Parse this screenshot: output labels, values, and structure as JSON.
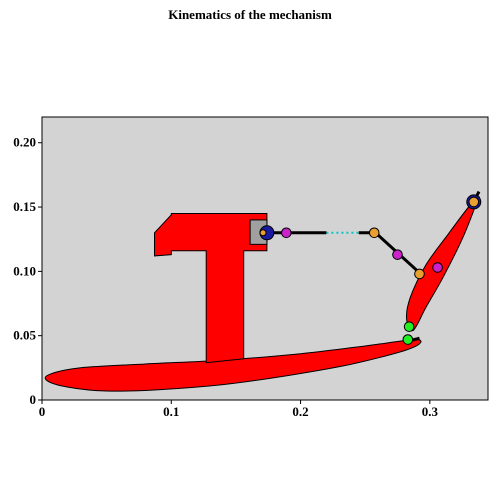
{
  "title": "Kinematics of the mechanism",
  "colors": {
    "background": "#d3d3d3",
    "body_fill": "#ff0000",
    "link": "#000000",
    "dotted_link": "#00c8c8",
    "slider_block": "#a0a0a0",
    "joint_blue": "#1a1aa0",
    "joint_orange": "#e8a030",
    "joint_magenta": "#cc22cc",
    "joint_green": "#22ee22"
  },
  "chart_data": {
    "type": "diagram",
    "xlim": [
      0,
      0.345
    ],
    "ylim": [
      0,
      0.22
    ],
    "x_ticks": [
      {
        "value": 0,
        "label": "0"
      },
      {
        "value": 0.1,
        "label": "0.1"
      },
      {
        "value": 0.2,
        "label": "0.2"
      },
      {
        "value": 0.3,
        "label": "0.3"
      }
    ],
    "y_ticks": [
      {
        "value": 0,
        "label": "0"
      },
      {
        "value": 0.05,
        "label": "0.05"
      },
      {
        "value": 0.1,
        "label": "0.10"
      },
      {
        "value": 0.15,
        "label": "0.15"
      },
      {
        "value": 0.2,
        "label": "0.20"
      }
    ],
    "grid": false,
    "hammer_head": [
      [
        0.087,
        0.13
      ],
      [
        0.087,
        0.112
      ],
      [
        0.1,
        0.113
      ],
      [
        0.1,
        0.116
      ],
      [
        0.127,
        0.116
      ],
      [
        0.127,
        0.029
      ],
      [
        0.156,
        0.032
      ],
      [
        0.156,
        0.116
      ],
      [
        0.174,
        0.116
      ],
      [
        0.174,
        0.145
      ],
      [
        0.1,
        0.145
      ],
      [
        0.1,
        0.144
      ]
    ],
    "lower_body": [
      [
        0.006,
        0.02
      ],
      [
        0.03,
        0.025
      ],
      [
        0.08,
        0.028
      ],
      [
        0.14,
        0.031
      ],
      [
        0.2,
        0.036
      ],
      [
        0.25,
        0.042
      ],
      [
        0.29,
        0.047
      ],
      [
        0.285,
        0.04
      ],
      [
        0.24,
        0.028
      ],
      [
        0.19,
        0.019
      ],
      [
        0.14,
        0.012
      ],
      [
        0.09,
        0.008
      ],
      [
        0.05,
        0.007
      ],
      [
        0.02,
        0.01
      ],
      [
        0.004,
        0.015
      ]
    ],
    "arm": [
      [
        0.287,
        0.054
      ],
      [
        0.297,
        0.072
      ],
      [
        0.31,
        0.095
      ],
      [
        0.325,
        0.125
      ],
      [
        0.335,
        0.15
      ],
      [
        0.338,
        0.158
      ],
      [
        0.33,
        0.15
      ],
      [
        0.315,
        0.13
      ],
      [
        0.297,
        0.105
      ],
      [
        0.285,
        0.08
      ],
      [
        0.282,
        0.063
      ]
    ],
    "slider_block": {
      "x": [
        0.161,
        0.174
      ],
      "y": [
        0.121,
        0.14
      ]
    },
    "links": [
      {
        "x": [
          0.171,
          0.22
        ],
        "y": [
          0.13,
          0.13
        ],
        "style": "solid"
      },
      {
        "x": [
          0.22,
          0.245
        ],
        "y": [
          0.13,
          0.13
        ],
        "style": "dotted"
      },
      {
        "x": [
          0.245,
          0.258
        ],
        "y": [
          0.13,
          0.13
        ],
        "style": "solid"
      },
      {
        "x": [
          0.258,
          0.293
        ],
        "y": [
          0.13,
          0.098
        ],
        "style": "solid"
      },
      {
        "x": [
          0.284,
          0.292
        ],
        "y": [
          0.046,
          0.048
        ],
        "style": "solid"
      },
      {
        "x": [
          0.334,
          0.338
        ],
        "y": [
          0.154,
          0.162
        ],
        "style": "solid"
      }
    ],
    "joints": [
      {
        "x": 0.174,
        "y": 0.13,
        "color": "blue",
        "size": "large"
      },
      {
        "x": 0.171,
        "y": 0.13,
        "color": "orange",
        "size": "tiny"
      },
      {
        "x": 0.189,
        "y": 0.13,
        "color": "magenta",
        "size": "small"
      },
      {
        "x": 0.257,
        "y": 0.13,
        "color": "orange",
        "size": "small"
      },
      {
        "x": 0.275,
        "y": 0.113,
        "color": "magenta",
        "size": "small"
      },
      {
        "x": 0.292,
        "y": 0.098,
        "color": "orange",
        "size": "small"
      },
      {
        "x": 0.306,
        "y": 0.103,
        "color": "magenta",
        "size": "small"
      },
      {
        "x": 0.334,
        "y": 0.154,
        "color": "blue",
        "size": "large"
      },
      {
        "x": 0.334,
        "y": 0.154,
        "color": "orange",
        "size": "small"
      },
      {
        "x": 0.284,
        "y": 0.057,
        "color": "green",
        "size": "small"
      },
      {
        "x": 0.283,
        "y": 0.047,
        "color": "green",
        "size": "small"
      }
    ]
  }
}
